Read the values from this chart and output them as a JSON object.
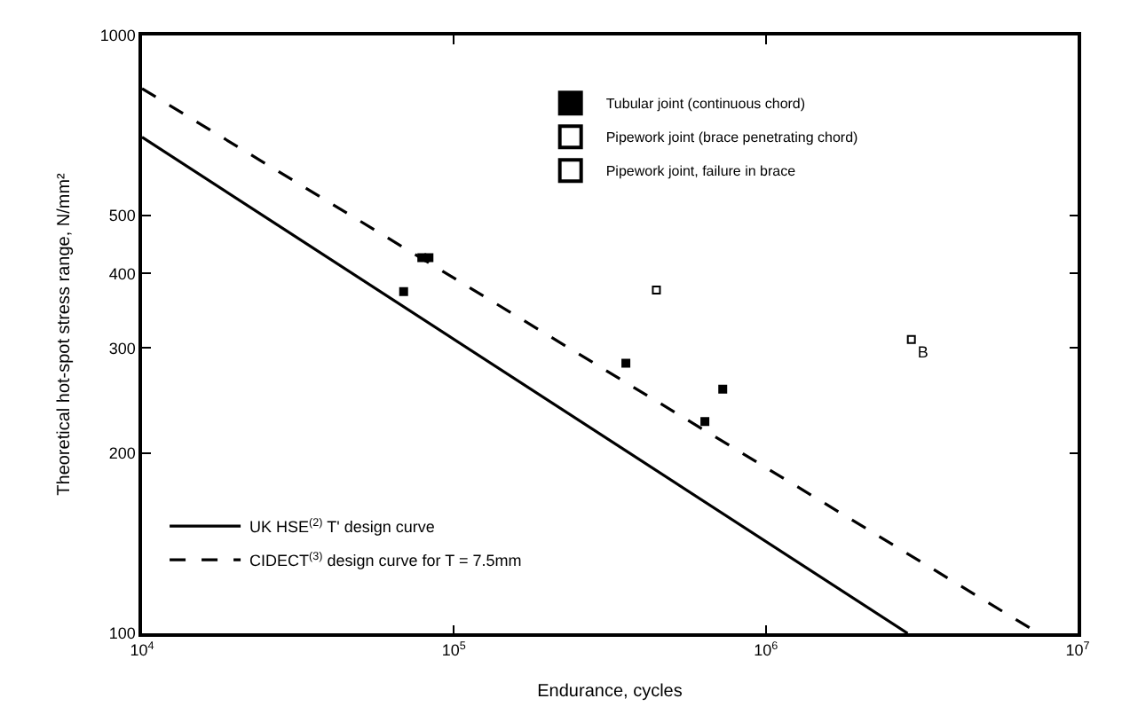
{
  "chart_data": {
    "type": "scatter",
    "xlabel": "Endurance, cycles",
    "ylabel": "Theoretical hot-spot stress range, N/mm²",
    "log": "xy",
    "xlim": [
      10000,
      10000000
    ],
    "xticks": [
      {
        "value": 10000,
        "label": "10$^{4}$"
      },
      {
        "value": 100000,
        "label": "10$^{5}$"
      },
      {
        "value": 1000000,
        "label": "10$^{6}$"
      },
      {
        "value": 10000000,
        "label": "10$^{7}$"
      }
    ],
    "ylim": [
      100,
      1000
    ],
    "yticks": [
      100,
      200,
      300,
      400,
      500,
      1000
    ],
    "legend": "top",
    "series": [
      {
        "name": "Tubular joint (continuous chord)",
        "type": "scatter",
        "marker": "square",
        "color": "#000000",
        "x": [
          69000,
          78900,
          83200,
          356000,
          638000,
          728000
        ],
        "values": [
          373,
          425,
          425,
          283,
          226,
          256
        ]
      },
      {
        "name": "Pipework joint (brace penetrating chord)",
        "type": "scatter",
        "marker": "square-open",
        "color": "#000000",
        "x": [
          446000
        ],
        "values": [
          375
        ]
      },
      {
        "name": "Pipework joint, failure in brace",
        "type": "scatter",
        "marker": "square-open",
        "color": "#000000",
        "x": [
          2930000
        ],
        "values": [
          310
        ],
        "value_labels": [
          "B"
        ]
      },
      {
        "name": "UK HSE$^{(2)}$ T' design curve",
        "type": "line",
        "line_style": "solid",
        "color": "#000000",
        "x": [
          10000,
          2850000
        ],
        "values": [
          676,
          100
        ]
      },
      {
        "name": "CIDECT$^{(3)}$ design curve for T = 7.5mm",
        "type": "line",
        "line_style": "dashed",
        "color": "#000000",
        "x": [
          10000,
          7500000
        ],
        "values": [
          815,
          100
        ]
      }
    ]
  }
}
